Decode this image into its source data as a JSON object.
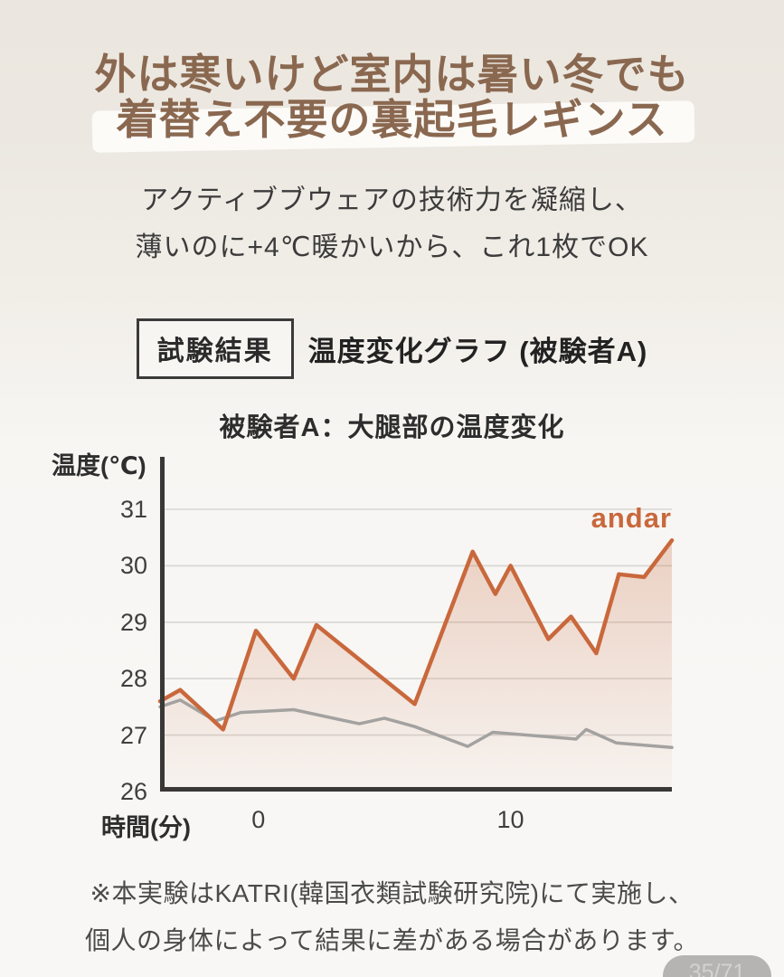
{
  "header": {
    "title_line1": "外は寒いけど室内は暑い冬でも",
    "title_line2": "着替え不要の裏起毛レギンス",
    "subtitle_line1": "アクティブブウェアの技術力を凝縮し、",
    "subtitle_line2": "薄いのに+4℃暖かいから、これ1枚でOK"
  },
  "section": {
    "badge": "試験結果",
    "title": "温度変化グラフ (被験者A)"
  },
  "chart_data": {
    "type": "line",
    "title": "被験者A：大腿部の温度変化",
    "ylabel": "温度(℃)",
    "xlabel": "時間(分)",
    "xlim": [
      -3.9,
      16.4
    ],
    "ylim": [
      26,
      31.93
    ],
    "y_ticks": [
      26,
      27,
      28,
      29,
      30,
      31
    ],
    "x_ticks": [
      {
        "value": 0,
        "label": "0"
      },
      {
        "value": 10,
        "label": "10"
      }
    ],
    "grid": "horizontal",
    "legend": [
      {
        "label": "andar",
        "position": "top-right",
        "color": "#c9683c"
      }
    ],
    "series": [
      {
        "label": "andar",
        "color": "#c9683c",
        "fill": true,
        "points": [
          [
            -3.9,
            27.6
          ],
          [
            -3.1,
            27.8
          ],
          [
            -1.4,
            27.1
          ],
          [
            -0.1,
            28.85
          ],
          [
            1.4,
            28.0
          ],
          [
            2.3,
            28.95
          ],
          [
            6.2,
            27.55
          ],
          [
            8.5,
            30.25
          ],
          [
            9.4,
            29.5
          ],
          [
            10.0,
            30.0
          ],
          [
            11.5,
            28.7
          ],
          [
            12.4,
            29.1
          ],
          [
            13.4,
            28.45
          ],
          [
            14.3,
            29.85
          ],
          [
            15.3,
            29.8
          ],
          [
            16.4,
            30.45
          ]
        ]
      },
      {
        "label": "",
        "color": "#a3a2a0",
        "fill": false,
        "points": [
          [
            -3.9,
            27.5
          ],
          [
            -3.1,
            27.62
          ],
          [
            -1.7,
            27.25
          ],
          [
            -0.7,
            27.4
          ],
          [
            1.4,
            27.45
          ],
          [
            4.0,
            27.2
          ],
          [
            5.0,
            27.3
          ],
          [
            6.2,
            27.15
          ],
          [
            8.3,
            26.8
          ],
          [
            9.3,
            27.05
          ],
          [
            12.6,
            26.93
          ],
          [
            13.0,
            27.1
          ],
          [
            14.2,
            26.86
          ],
          [
            16.4,
            26.78
          ]
        ]
      }
    ]
  },
  "footnote": {
    "line1": "※本実験はKATRI(韓国衣類試験研究院)にて実施し、",
    "line2": "個人の身体によって結果に差がある場合があります。"
  },
  "footer": {
    "page_indicator": "35/71"
  },
  "colors": {
    "title_brown": "#8a6850",
    "accent_orange": "#c9683c",
    "line_gray": "#a3a2a0",
    "axis_dark": "#3a3836",
    "grid_gray": "#d8d6d2",
    "pill_gray": "#b5b4b2",
    "bg_top": "#ebe7e0",
    "bg_bottom": "#f8f7f5"
  }
}
